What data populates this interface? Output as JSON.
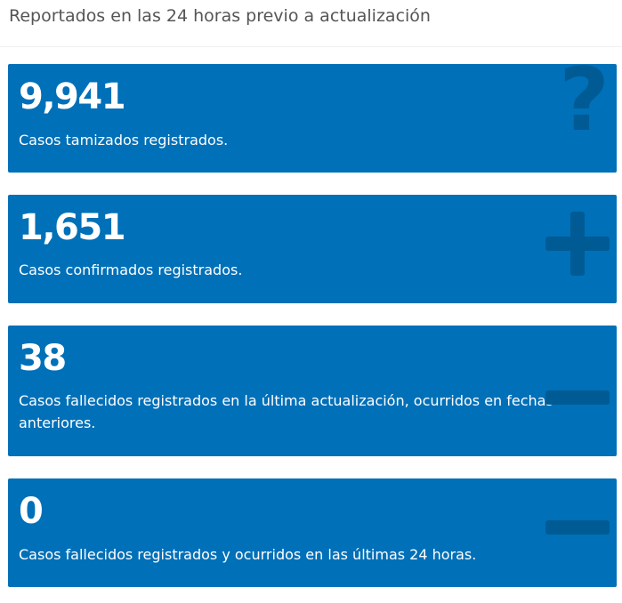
{
  "header": {
    "title": "Reportados en las 24 horas previo a actualización"
  },
  "cards": [
    {
      "value": "9,941",
      "description": "Casos tamizados registrados.",
      "icon": "question-icon"
    },
    {
      "value": "1,651",
      "description": "Casos confirmados registrados.",
      "icon": "plus-icon"
    },
    {
      "value": "38",
      "description": "Casos fallecidos registrados en la última actualización, ocurridos en fechas anteriores.",
      "icon": "minus-icon"
    },
    {
      "value": "0",
      "description": "Casos fallecidos registrados y ocurridos en las últimas 24 horas.",
      "icon": "minus-icon"
    }
  ],
  "colors": {
    "card_background": "#0070b8",
    "icon_color": "#005b94",
    "text": "#ffffff",
    "header_text": "#555555"
  }
}
